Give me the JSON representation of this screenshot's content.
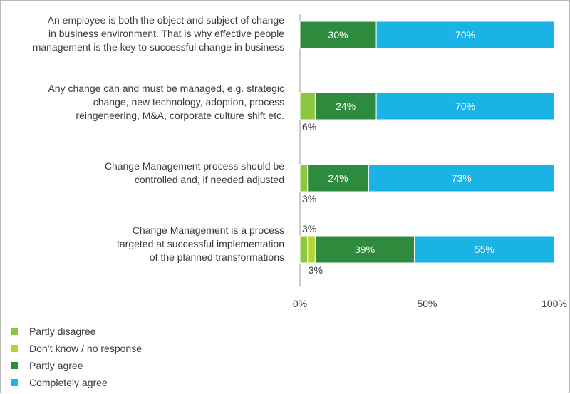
{
  "chart_data": {
    "type": "bar",
    "orientation": "horizontal",
    "stacked": true,
    "categories": [
      [
        "An employee is both the object and subject of change",
        "in business environment. That is why effective people",
        "management is the key to successful change in business"
      ],
      [
        "Any change can and must  be managed, e.g. strategic",
        "change, new technology, adoption, process",
        "reingeneering, M&A, corporate culture shift etc."
      ],
      [
        "Change Management process should be",
        "controlled and, if needed adjusted"
      ],
      [
        "Change Management is a process",
        "targeted at successful implementation",
        "of the planned transformations"
      ]
    ],
    "series": [
      {
        "name": "Partly disagree",
        "color": "#8dc63f",
        "values": [
          0,
          6,
          3,
          3
        ]
      },
      {
        "name": "Don’t know / no response",
        "color": "#b5d334",
        "values": [
          0,
          0,
          0,
          3
        ]
      },
      {
        "name": "Partly agree",
        "color": "#2e8b3d",
        "values": [
          30,
          24,
          24,
          39
        ]
      },
      {
        "name": "Completely agree",
        "color": "#1ab3e6",
        "values": [
          70,
          70,
          73,
          55
        ]
      }
    ],
    "data_labels": [
      [
        {
          "series": 2,
          "text": "30%",
          "pos": "inside"
        },
        {
          "series": 3,
          "text": "70%",
          "pos": "inside"
        }
      ],
      [
        {
          "series": 0,
          "text": "6%",
          "pos": "below"
        },
        {
          "series": 2,
          "text": "24%",
          "pos": "inside"
        },
        {
          "series": 3,
          "text": "70%",
          "pos": "inside"
        }
      ],
      [
        {
          "series": 0,
          "text": "3%",
          "pos": "below"
        },
        {
          "series": 2,
          "text": "24%",
          "pos": "inside"
        },
        {
          "series": 3,
          "text": "73%",
          "pos": "inside"
        }
      ],
      [
        {
          "series": 0,
          "text": "3%",
          "pos": "above"
        },
        {
          "series": 1,
          "text": "3%",
          "pos": "below"
        },
        {
          "series": 2,
          "text": "39%",
          "pos": "inside"
        },
        {
          "series": 3,
          "text": "55%",
          "pos": "inside"
        }
      ]
    ],
    "xlim": [
      0,
      100
    ],
    "xticks": [
      "0%",
      "50%",
      "100%"
    ],
    "grid": false,
    "legend_position": "bottom-left"
  }
}
